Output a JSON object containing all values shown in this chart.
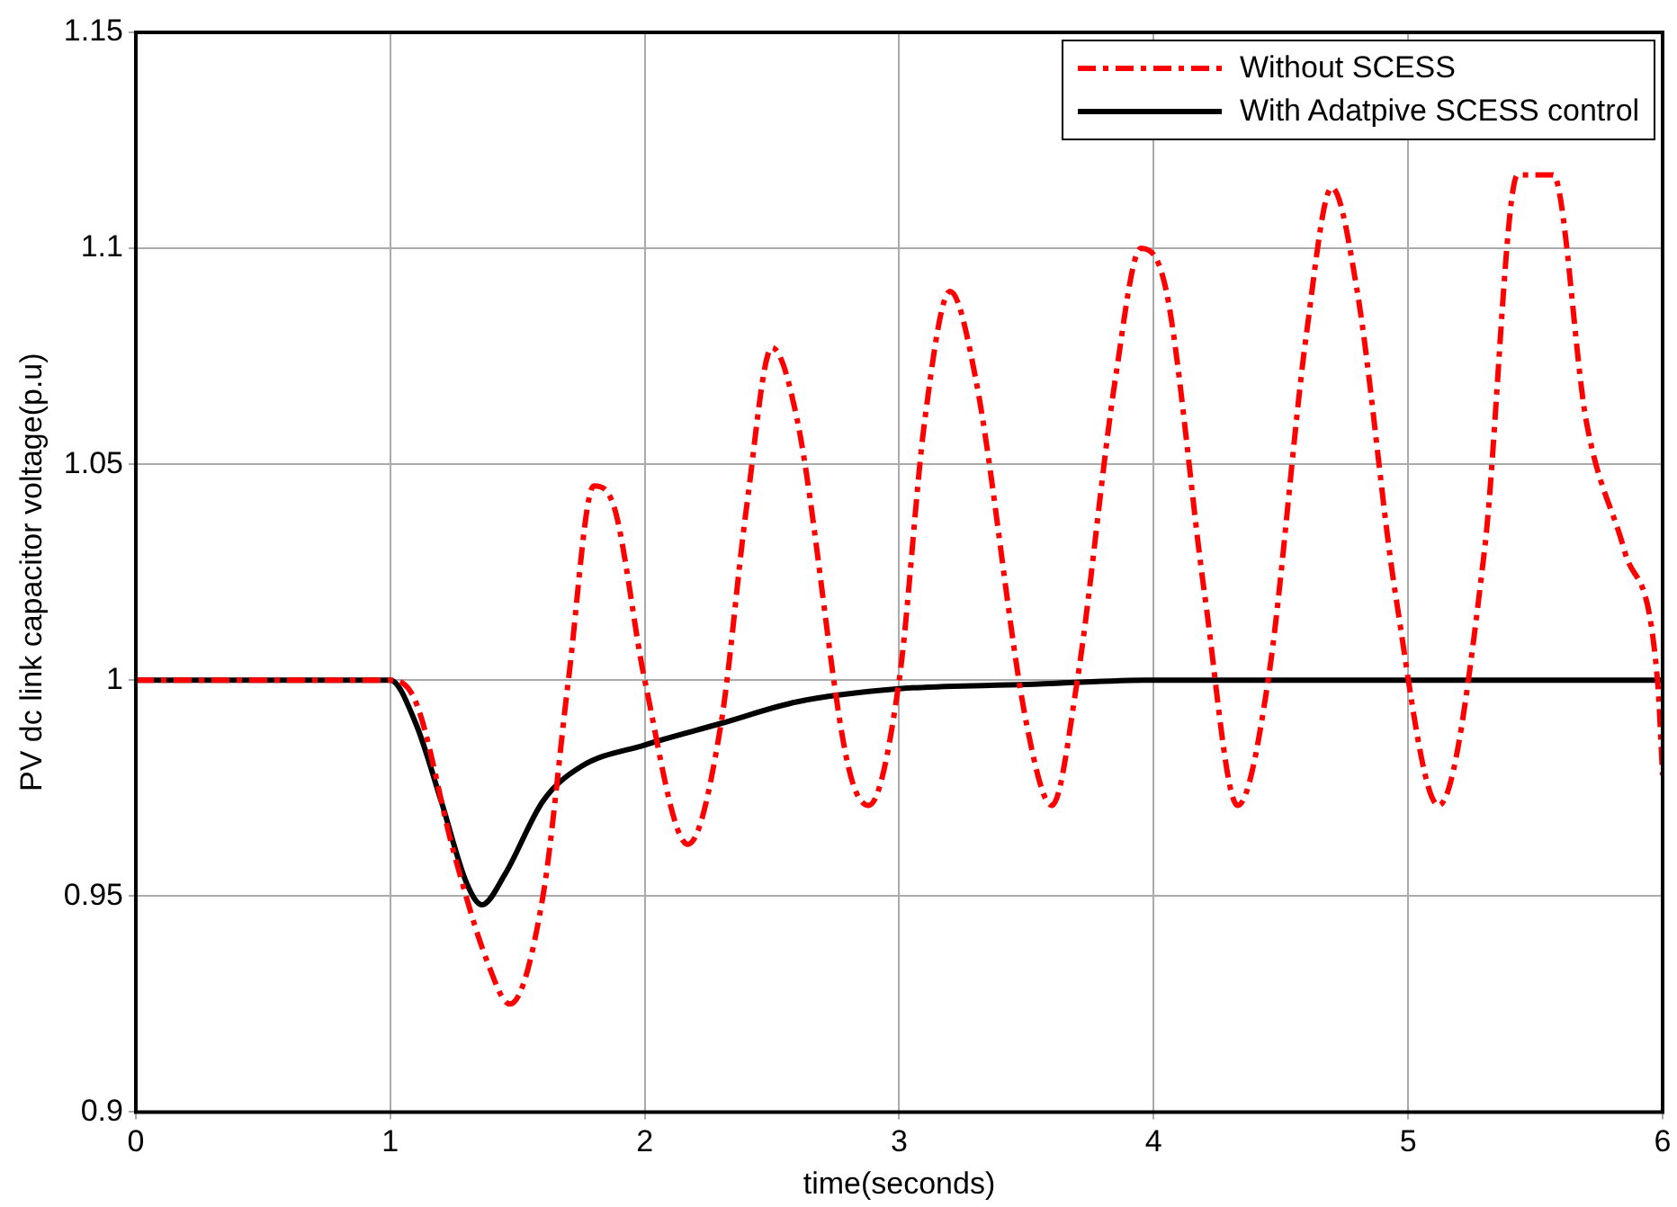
{
  "chart_data": {
    "type": "line",
    "xlabel": "time(seconds)",
    "ylabel": "PV dc link capacitor voltage(p.u)",
    "xlim": [
      0,
      6
    ],
    "xticks": [
      0,
      1,
      2,
      3,
      4,
      5,
      6
    ],
    "ylim": [
      0.9,
      1.15
    ],
    "yticks": [
      0.9,
      0.95,
      1,
      1.05,
      1.1,
      1.15
    ],
    "grid": true,
    "legend": "top right",
    "marker": "none",
    "series": [
      {
        "name": "Without SCESS",
        "color": "#ff0000",
        "line_style": "dashed",
        "x": [
          0,
          1,
          1.1,
          1.25,
          1.38,
          1.47,
          1.6,
          1.7,
          1.8,
          1.88,
          2,
          2.17,
          2.3,
          2.4,
          2.5,
          2.6,
          2.8,
          2.88,
          3,
          3.1,
          3.2,
          3.3,
          3.5,
          3.6,
          3.7,
          3.85,
          3.95,
          4.05,
          4.2,
          4.33,
          4.45,
          4.6,
          4.7,
          4.8,
          4.95,
          5.12,
          5.3,
          5.43,
          5.57,
          5.7,
          5.85,
          5.98,
          6
        ],
        "values": [
          1,
          1,
          0.995,
          0.96,
          0.935,
          0.925,
          0.95,
          1,
          1.045,
          1.04,
          1,
          0.962,
          0.99,
          1.04,
          1.077,
          1.06,
          0.98,
          0.971,
          1,
          1.06,
          1.09,
          1.07,
          0.99,
          0.971,
          1,
          1.07,
          1.1,
          1.09,
          1.02,
          0.971,
          1,
          1.08,
          1.114,
          1.09,
          1.02,
          0.971,
          1.03,
          1.117,
          1.117,
          1.06,
          1.03,
          1,
          0.978
        ]
      },
      {
        "name": "With Adatpive SCESS control",
        "color": "#000000",
        "line_style": "solid",
        "x": [
          0,
          1,
          1.1,
          1.2,
          1.3,
          1.36,
          1.45,
          1.6,
          1.75,
          2,
          2.3,
          2.6,
          3,
          3.5,
          4,
          6
        ],
        "values": [
          1,
          1,
          0.99,
          0.972,
          0.953,
          0.948,
          0.955,
          0.972,
          0.98,
          0.985,
          0.99,
          0.995,
          0.998,
          0.999,
          1,
          1
        ]
      }
    ]
  }
}
